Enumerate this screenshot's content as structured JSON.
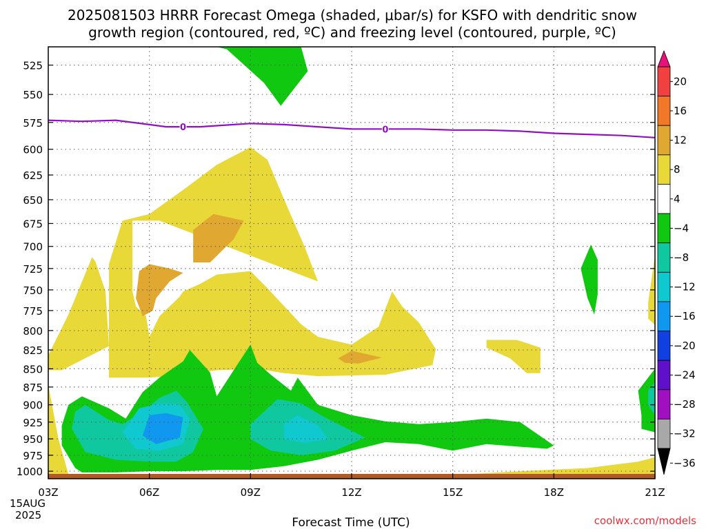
{
  "chart_data": {
    "type": "contour",
    "title_line1": "2025081503 HRRR Forecast Omega (shaded, μbar/s) for KSFO with dendritic snow",
    "title_line2": "growth region (contoured, red, ºC) and freezing level (contoured, purple, ºC)",
    "xlabel": "Forecast Time (UTC)",
    "credit": "coolwx.com/models",
    "x_ticks": [
      "03Z",
      "06Z",
      "09Z",
      "12Z",
      "15Z",
      "18Z",
      "21Z"
    ],
    "x_date_lines": [
      "15AUG",
      "2025"
    ],
    "x_range_hours": [
      3,
      21
    ],
    "y_ticks": [
      525,
      550,
      575,
      600,
      625,
      650,
      675,
      700,
      725,
      750,
      775,
      800,
      825,
      850,
      875,
      900,
      925,
      950,
      975,
      1000
    ],
    "y_range_hPa": [
      1012,
      510
    ],
    "y_scale": "log-pressure",
    "grid": true,
    "colorbar": {
      "placement": "right",
      "labels": [
        "20",
        "16",
        "12",
        "8",
        "4",
        "−4",
        "−8",
        "−12",
        "−16",
        "−20",
        "−24",
        "−28",
        "−32",
        "−36"
      ],
      "colors": [
        "#e8107a",
        "#f04040",
        "#f07828",
        "#e0a830",
        "#e8d838",
        "#ffffff",
        "#10c810",
        "#10c8a0",
        "#10c8d0",
        "#1098f0",
        "#1040e0",
        "#6010c8",
        "#a010c0",
        "#a8a8a8",
        "#000000"
      ]
    },
    "freezing_level": {
      "label": "0",
      "color": "#9010c0",
      "points": [
        [
          3.0,
          573
        ],
        [
          4.0,
          574
        ],
        [
          5.0,
          573
        ],
        [
          6.0,
          577
        ],
        [
          6.5,
          579
        ],
        [
          7.5,
          579
        ],
        [
          8.5,
          577
        ],
        [
          9.0,
          576
        ],
        [
          10.0,
          577
        ],
        [
          11.0,
          579
        ],
        [
          12.0,
          581
        ],
        [
          13.0,
          581
        ],
        [
          14.0,
          581
        ],
        [
          15.0,
          582
        ],
        [
          16.0,
          582
        ],
        [
          17.0,
          583
        ],
        [
          18.0,
          585
        ],
        [
          19.0,
          586
        ],
        [
          20.0,
          587
        ],
        [
          21.0,
          589
        ]
      ]
    },
    "ground_color": "#b05a28",
    "regions": [
      {
        "level": "4 to 8",
        "color": "#e8d838",
        "points": [
          [
            4.4,
            717
          ],
          [
            4.3,
            712
          ],
          [
            3.6,
            780
          ],
          [
            3.0,
            832
          ],
          [
            3.0,
            852
          ],
          [
            3.4,
            852
          ],
          [
            3.7,
            845
          ],
          [
            4.8,
            820
          ],
          [
            4.7,
            752
          ]
        ]
      },
      {
        "level": "4 to 8",
        "color": "#e8d838",
        "points": [
          [
            6.3,
            672
          ],
          [
            5.5,
            672
          ],
          [
            5.5,
            752
          ],
          [
            5.6,
            770
          ],
          [
            5.9,
            782
          ],
          [
            6.0,
            808
          ],
          [
            6.3,
            782
          ],
          [
            6.9,
            758
          ],
          [
            7.0,
            752
          ],
          [
            7.5,
            743
          ],
          [
            8.0,
            732
          ],
          [
            9.0,
            728
          ],
          [
            9.5,
            748
          ],
          [
            10.5,
            792
          ],
          [
            11.0,
            808
          ],
          [
            12.0,
            818
          ],
          [
            12.8,
            795
          ],
          [
            13.2,
            752
          ],
          [
            13.5,
            770
          ],
          [
            14.0,
            790
          ],
          [
            14.5,
            824
          ],
          [
            14.4,
            845
          ],
          [
            13.0,
            858
          ],
          [
            11.0,
            860
          ],
          [
            10.0,
            856
          ],
          [
            9.2,
            850
          ],
          [
            8.0,
            852
          ],
          [
            7.0,
            858
          ],
          [
            6.0,
            862
          ],
          [
            5.7,
            862
          ],
          [
            4.8,
            862
          ],
          [
            4.8,
            752
          ],
          [
            4.8,
            720
          ],
          [
            5.2,
            672
          ],
          [
            6.0,
            665
          ],
          [
            7.0,
            640
          ],
          [
            8.0,
            615
          ],
          [
            9.0,
            598
          ],
          [
            9.5,
            610
          ],
          [
            10.0,
            650
          ],
          [
            10.6,
            700
          ],
          [
            11.0,
            740
          ]
        ]
      },
      {
        "level": "4 to 8",
        "color": "#e8d838",
        "points": [
          [
            16.0,
            812
          ],
          [
            16.9,
            812
          ],
          [
            17.6,
            822
          ],
          [
            17.6,
            856
          ],
          [
            17.2,
            856
          ],
          [
            16.7,
            836
          ],
          [
            16.0,
            822
          ]
        ]
      },
      {
        "level": "4 to 8",
        "color": "#e8d838",
        "points": [
          [
            20.8,
            765
          ],
          [
            21.0,
            710
          ],
          [
            21.0,
            793
          ],
          [
            20.8,
            785
          ]
        ]
      },
      {
        "level": "4 to 8",
        "color": "#e8d838",
        "points": [
          [
            15.0,
            1006
          ],
          [
            17.0,
            1000
          ],
          [
            19.0,
            995
          ],
          [
            20.5,
            985
          ],
          [
            21.0,
            978
          ],
          [
            21.0,
            1010
          ],
          [
            15.0,
            1010
          ]
        ]
      },
      {
        "level": "4 to 8",
        "color": "#e8d838",
        "points": [
          [
            3.0,
            872
          ],
          [
            3.3,
            950
          ],
          [
            3.6,
            1005
          ],
          [
            3.0,
            1008
          ]
        ]
      },
      {
        "level": "8 to 12",
        "color": "#e0a830",
        "points": [
          [
            5.7,
            728
          ],
          [
            6.0,
            720
          ],
          [
            6.6,
            725
          ],
          [
            7.0,
            730
          ],
          [
            6.6,
            740
          ],
          [
            6.2,
            760
          ],
          [
            6.1,
            775
          ],
          [
            5.8,
            782
          ],
          [
            5.6,
            760
          ]
        ]
      },
      {
        "level": "8 to 12",
        "color": "#e0a830",
        "points": [
          [
            7.3,
            682
          ],
          [
            7.9,
            665
          ],
          [
            8.8,
            672
          ],
          [
            8.5,
            692
          ],
          [
            7.8,
            718
          ],
          [
            7.3,
            718
          ]
        ]
      },
      {
        "level": "8 to 12",
        "color": "#e0a830",
        "points": [
          [
            11.6,
            836
          ],
          [
            12.0,
            826
          ],
          [
            12.9,
            835
          ],
          [
            12.2,
            843
          ],
          [
            11.8,
            842
          ]
        ]
      },
      {
        "level": "-4 to -8",
        "color": "#10c810",
        "points": [
          [
            8.0,
            510
          ],
          [
            9.9,
            510
          ],
          [
            10.5,
            510
          ],
          [
            10.7,
            530
          ],
          [
            9.9,
            560
          ],
          [
            9.4,
            540
          ],
          [
            8.3,
            512
          ]
        ]
      },
      {
        "level": "-4 to -8",
        "color": "#10c810",
        "points": [
          [
            19.1,
            698
          ],
          [
            19.3,
            715
          ],
          [
            19.3,
            755
          ],
          [
            19.2,
            780
          ],
          [
            19.0,
            760
          ],
          [
            18.8,
            725
          ]
        ]
      },
      {
        "level": "-4 to -8",
        "color": "#10c810",
        "points": [
          [
            4.0,
            1002
          ],
          [
            3.8,
            995
          ],
          [
            3.4,
            960
          ],
          [
            3.4,
            930
          ],
          [
            3.6,
            900
          ],
          [
            4.0,
            888
          ],
          [
            4.8,
            905
          ],
          [
            5.3,
            920
          ],
          [
            5.8,
            882
          ],
          [
            6.3,
            862
          ],
          [
            7.0,
            840
          ],
          [
            7.2,
            825
          ],
          [
            7.8,
            855
          ],
          [
            8.0,
            888
          ],
          [
            8.6,
            845
          ],
          [
            9.0,
            818
          ],
          [
            9.2,
            842
          ],
          [
            9.6,
            858
          ],
          [
            10.2,
            880
          ],
          [
            10.4,
            862
          ],
          [
            11.0,
            900
          ],
          [
            12.0,
            915
          ],
          [
            13.0,
            924
          ],
          [
            14.0,
            928
          ],
          [
            15.0,
            925
          ],
          [
            16.0,
            920
          ],
          [
            17.0,
            925
          ],
          [
            18.0,
            960
          ],
          [
            17.8,
            965
          ],
          [
            17.0,
            962
          ],
          [
            16.0,
            958
          ],
          [
            15.0,
            968
          ],
          [
            14.0,
            958
          ],
          [
            13.0,
            955
          ],
          [
            12.0,
            968
          ],
          [
            11.0,
            982
          ],
          [
            10.0,
            992
          ],
          [
            9.0,
            998
          ],
          [
            8.0,
            998
          ],
          [
            7.0,
            1000
          ],
          [
            6.0,
            1000
          ],
          [
            5.0,
            1002
          ]
        ]
      },
      {
        "level": "-4 to -8",
        "color": "#10c810",
        "points": [
          [
            20.6,
            915
          ],
          [
            20.5,
            880
          ],
          [
            21.0,
            850
          ],
          [
            21.0,
            940
          ],
          [
            20.6,
            935
          ]
        ]
      },
      {
        "level": "-8 to -12",
        "color": "#10c8a0",
        "points": [
          [
            3.7,
            935
          ],
          [
            3.8,
            910
          ],
          [
            4.1,
            900
          ],
          [
            4.8,
            922
          ],
          [
            5.2,
            928
          ],
          [
            5.8,
            910
          ],
          [
            6.3,
            890
          ],
          [
            6.8,
            880
          ],
          [
            7.1,
            895
          ],
          [
            7.6,
            935
          ],
          [
            7.3,
            970
          ],
          [
            6.8,
            985
          ],
          [
            6.0,
            985
          ],
          [
            5.0,
            982
          ],
          [
            4.1,
            970
          ]
        ]
      },
      {
        "level": "-8 to -12",
        "color": "#10c8a0",
        "points": [
          [
            9.0,
            928
          ],
          [
            9.8,
            892
          ],
          [
            10.5,
            898
          ],
          [
            11.2,
            918
          ],
          [
            12.4,
            948
          ],
          [
            11.5,
            968
          ],
          [
            10.5,
            975
          ],
          [
            9.6,
            968
          ],
          [
            9.0,
            950
          ]
        ]
      },
      {
        "level": "-8 to -12",
        "color": "#10c8a0",
        "points": [
          [
            20.8,
            880
          ],
          [
            21.0,
            868
          ],
          [
            21.0,
            915
          ],
          [
            20.8,
            900
          ]
        ]
      },
      {
        "level": "-12 to -16",
        "color": "#10c8d0",
        "points": [
          [
            5.2,
            940
          ],
          [
            5.7,
            905
          ],
          [
            6.3,
            898
          ],
          [
            6.9,
            900
          ],
          [
            7.2,
            920
          ],
          [
            7.0,
            958
          ],
          [
            6.3,
            968
          ],
          [
            5.6,
            965
          ]
        ]
      },
      {
        "level": "-12 to -16",
        "color": "#10c8d0",
        "points": [
          [
            10.0,
            928
          ],
          [
            10.4,
            915
          ],
          [
            11.0,
            930
          ],
          [
            11.3,
            950
          ],
          [
            10.6,
            956
          ],
          [
            10.0,
            950
          ]
        ]
      },
      {
        "level": "-16 to -20",
        "color": "#1098f0",
        "points": [
          [
            5.8,
            945
          ],
          [
            6.0,
            915
          ],
          [
            6.5,
            912
          ],
          [
            7.0,
            918
          ],
          [
            6.9,
            948
          ],
          [
            6.2,
            958
          ]
        ]
      }
    ]
  }
}
